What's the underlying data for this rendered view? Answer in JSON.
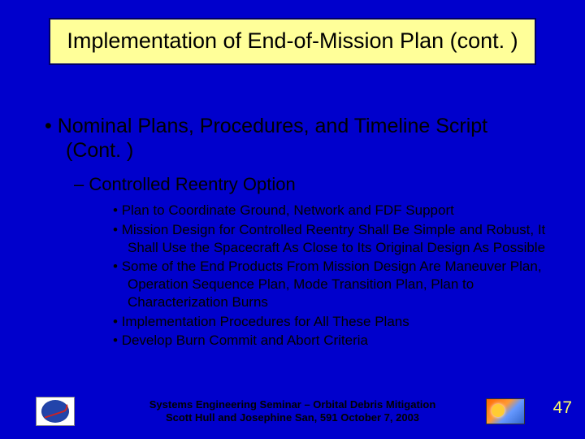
{
  "title": "Implementation of End-of-Mission Plan (cont. )",
  "level1": "Nominal Plans, Procedures, and Timeline Script (Cont. )",
  "level2": "Controlled Reentry Option",
  "bullets": [
    "Plan to Coordinate Ground, Network and FDF Support",
    "Mission Design for Controlled Reentry Shall Be Simple and Robust, It Shall Use the Spacecraft As Close to Its Original Design As Possible",
    "Some of the End Products From Mission Design Are Maneuver Plan, Operation Sequence Plan, Mode Transition Plan, Plan to Characterization Burns",
    "Implementation Procedures for All These Plans",
    "Develop Burn Commit and Abort Criteria"
  ],
  "footer": {
    "line1": "Systems Engineering Seminar – Orbital Debris Mitigation",
    "line2": "Scott Hull and Josephine San, 591   October 7, 2003"
  },
  "pageNumber": "47",
  "colors": {
    "background": "#0000cc",
    "titleBg": "#ffff99",
    "titleBorder": "#000066",
    "pageNumColor": "#ffff66"
  }
}
